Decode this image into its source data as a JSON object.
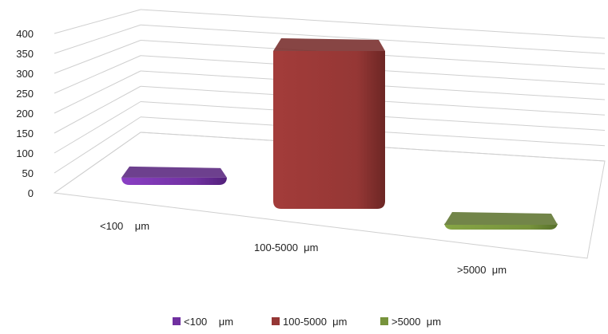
{
  "chart_data": {
    "type": "bar",
    "title": "",
    "xlabel": "",
    "ylabel": "",
    "ylim": [
      0,
      400
    ],
    "yticks": [
      0,
      50,
      100,
      150,
      200,
      250,
      300,
      350,
      400
    ],
    "grid": true,
    "legend_position": "bottom",
    "categories": [
      "<100    μm",
      "100-5000  μm",
      ">5000  μm"
    ],
    "values": [
      18,
      392,
      10
    ],
    "colors": [
      "#7030A0",
      "#953735",
      "#77933C"
    ]
  }
}
